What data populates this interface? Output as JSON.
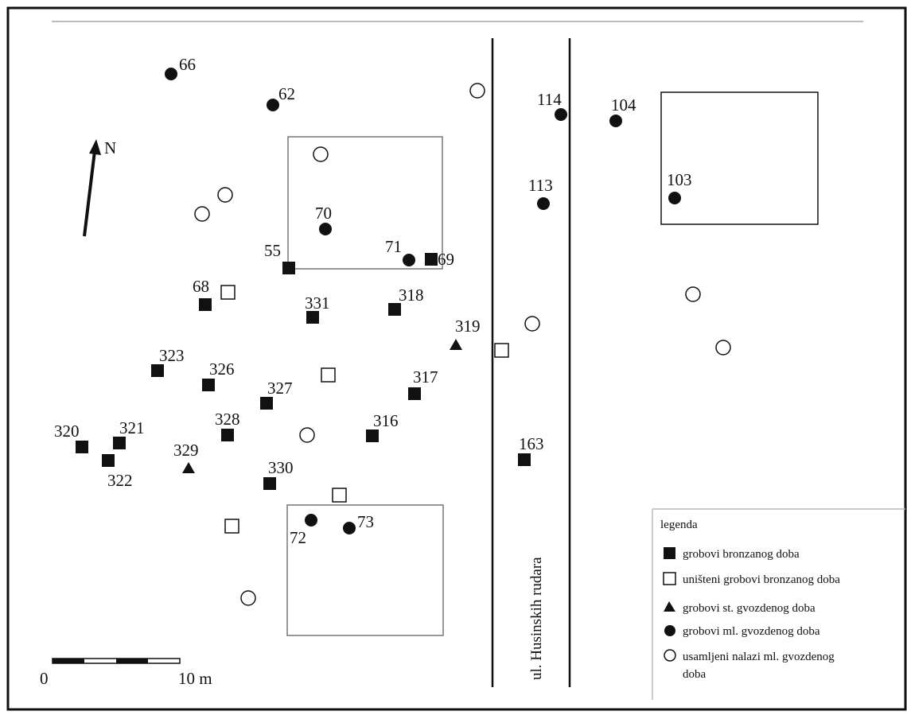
{
  "north_label": "N",
  "street_label": "ul. Husinskih rudara",
  "scale": {
    "zero": "0",
    "end": "10 m"
  },
  "legend": {
    "title": "legenda",
    "items": [
      {
        "symbol": "filled-square",
        "label": "grobovi bronzanog doba"
      },
      {
        "symbol": "open-square",
        "label": "uništeni grobovi bronzanog doba"
      },
      {
        "symbol": "filled-triangle",
        "label": "grobovi st. gvozdenog doba"
      },
      {
        "symbol": "filled-circle",
        "label": "grobovi ml. gvozdenog doba"
      },
      {
        "symbol": "open-circle",
        "label": "usamljeni nalazi ml. gvozdenog",
        "label2": "doba"
      }
    ]
  },
  "labels": {
    "g66": "66",
    "g62": "62",
    "g114": "114",
    "g104": "104",
    "g103": "103",
    "g113": "113",
    "g70": "70",
    "g71": "71",
    "g69": "69",
    "g55": "55",
    "g68": "68",
    "g331": "331",
    "g318": "318",
    "g319": "319",
    "g323": "323",
    "g326": "326",
    "g327": "327",
    "g317": "317",
    "g328": "328",
    "g316": "316",
    "g320": "320",
    "g321": "321",
    "g322": "322",
    "g329": "329",
    "g330": "330",
    "g163": "163",
    "g72": "72",
    "g73": "73"
  }
}
